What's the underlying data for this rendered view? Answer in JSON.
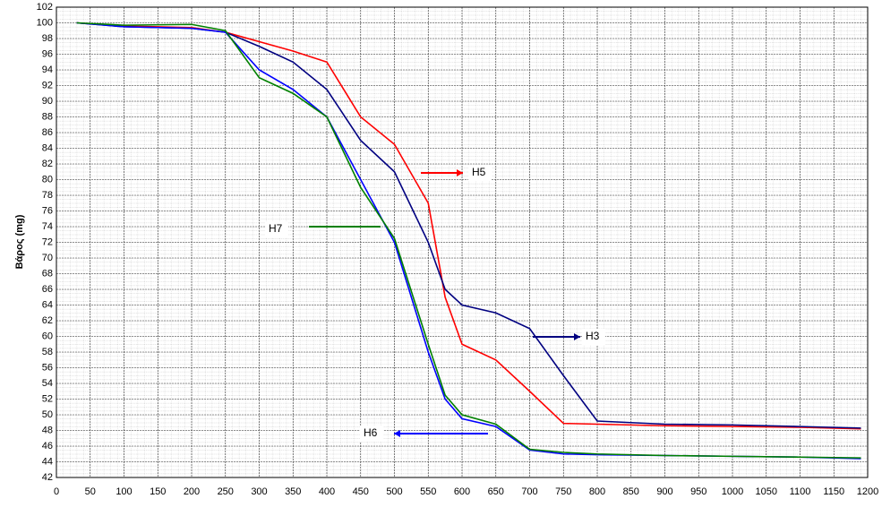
{
  "chart_data": {
    "type": "line",
    "y_label": "Βάρος (mg)",
    "x": [
      30,
      100,
      200,
      250,
      300,
      350,
      400,
      450,
      500,
      550,
      575,
      600,
      650,
      700,
      750,
      800,
      900,
      1000,
      1100,
      1190
    ],
    "series": [
      {
        "name": "H5",
        "color": "#ff0000",
        "values": [
          100,
          99.6,
          99.4,
          98.8,
          97.6,
          96.4,
          95,
          88,
          84.5,
          77,
          65,
          59,
          57,
          53,
          48.9,
          48.8,
          48.6,
          48.5,
          48.4,
          48.2
        ]
      },
      {
        "name": "H3",
        "color": "#000080",
        "values": [
          100,
          99.5,
          99.3,
          98.8,
          97,
          95,
          91.5,
          85,
          81,
          72,
          66,
          64,
          63,
          61,
          55,
          49.2,
          48.8,
          48.7,
          48.5,
          48.3
        ]
      },
      {
        "name": "H6",
        "color": "#0000ff",
        "values": [
          100,
          99.5,
          99.3,
          98.8,
          94,
          91.5,
          88,
          80,
          72,
          58,
          52,
          49.5,
          48.5,
          45.5,
          45,
          44.9,
          44.8,
          44.7,
          44.6,
          44.4
        ]
      },
      {
        "name": "H7",
        "color": "#008000",
        "values": [
          100,
          99.7,
          99.8,
          99,
          93,
          91,
          88,
          79,
          72.5,
          59,
          52.5,
          50,
          48.8,
          45.6,
          45.2,
          45,
          44.8,
          44.7,
          44.6,
          44.5
        ]
      }
    ],
    "xlim": [
      0,
      1200
    ],
    "xticks": [
      0,
      50,
      100,
      150,
      200,
      250,
      300,
      350,
      400,
      450,
      500,
      550,
      600,
      650,
      700,
      750,
      800,
      850,
      900,
      950,
      1000,
      1050,
      1100,
      1150,
      1200
    ],
    "ylim": [
      42,
      102
    ],
    "yticks": [
      42,
      44,
      46,
      48,
      50,
      52,
      54,
      56,
      58,
      60,
      62,
      64,
      66,
      68,
      70,
      72,
      74,
      76,
      78,
      80,
      82,
      84,
      86,
      88,
      90,
      92,
      94,
      96,
      98,
      100,
      102
    ],
    "grid": true
  }
}
